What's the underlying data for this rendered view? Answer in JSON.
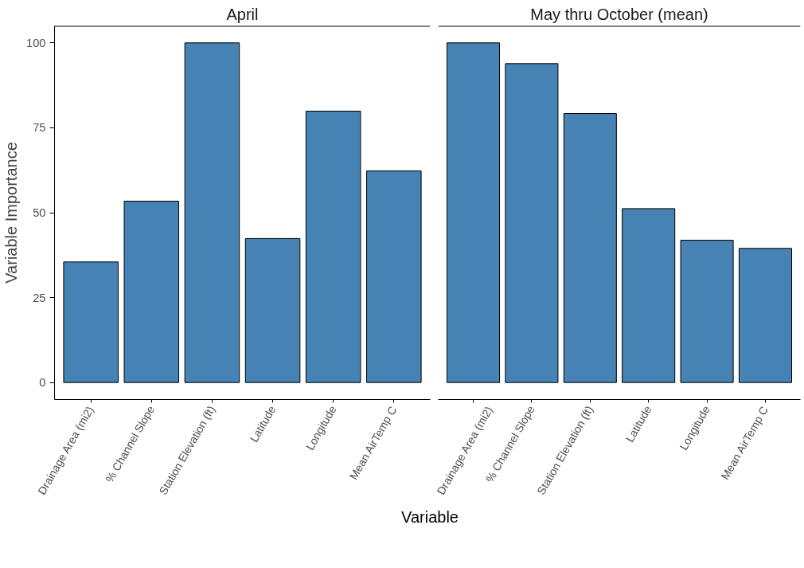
{
  "chart_data": [
    {
      "type": "bar",
      "title": "April",
      "xlabel": "Variable",
      "ylabel": "Variable Importance",
      "categories": [
        "Drainage Area (mi2)",
        "% Channel Slope",
        "Station Elevation (ft)",
        "Latitude",
        "Longitude",
        "Mean AirTemp C"
      ],
      "series": [
        {
          "color": "#4682b4",
          "values": [
            35.5,
            53.4,
            100,
            42.4,
            79.9,
            62.3
          ]
        }
      ],
      "ylim": [
        -5,
        105
      ],
      "yticks": [
        0,
        25,
        50,
        75,
        100
      ],
      "grid": false
    },
    {
      "type": "bar",
      "title": "May thru October (mean)",
      "categories": [
        "Drainage Area (mi2)",
        "% Channel Slope",
        "Station Elevation (ft)",
        "Latitude",
        "Longitude",
        "Mean AirTemp C"
      ],
      "series": [
        {
          "color": "#4682b4",
          "values": [
            100,
            93.9,
            79.2,
            51.2,
            41.9,
            39.5
          ]
        }
      ],
      "ylim": [
        -5,
        105
      ],
      "yticks": [
        0,
        25,
        50,
        75,
        100
      ],
      "tick_labels": "x",
      "grid": false
    }
  ]
}
